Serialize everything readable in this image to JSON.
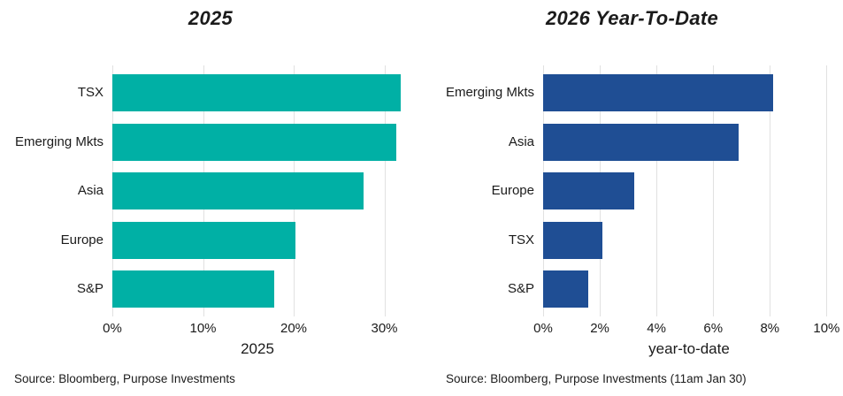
{
  "grid_color": "#E1E1E1",
  "text_color": "#1b1b1b",
  "chart_data": [
    {
      "type": "bar",
      "orientation": "horizontal",
      "title": "2025",
      "categories": [
        "TSX",
        "Emerging Mkts",
        "Asia",
        "Europe",
        "S&P"
      ],
      "values": [
        31.8,
        31.3,
        27.7,
        20.2,
        17.9
      ],
      "xlabel": "2025",
      "xticks": [
        0,
        10,
        20,
        30
      ],
      "xtick_labels": [
        "0%",
        "10%",
        "20%",
        "30%"
      ],
      "xlim": [
        0,
        32
      ],
      "bar_color": "#00B0A5",
      "grid": true,
      "legend": "none",
      "source": "Source: Bloomberg, Purpose Investments"
    },
    {
      "type": "bar",
      "orientation": "horizontal",
      "title": "2026 Year-To-Date",
      "categories": [
        "Emerging Mkts",
        "Asia",
        "Europe",
        "TSX",
        "S&P"
      ],
      "values": [
        8.1,
        6.9,
        3.2,
        2.1,
        1.6
      ],
      "xlabel": "year-to-date",
      "xticks": [
        0,
        2,
        4,
        6,
        8,
        10
      ],
      "xtick_labels": [
        "0%",
        "2%",
        "4%",
        "6%",
        "8%",
        "10%"
      ],
      "xlim": [
        0,
        10.3
      ],
      "bar_color": "#1F4E94",
      "grid": true,
      "legend": "none",
      "source": "Source: Bloomberg, Purpose Investments (11am Jan 30)"
    }
  ]
}
